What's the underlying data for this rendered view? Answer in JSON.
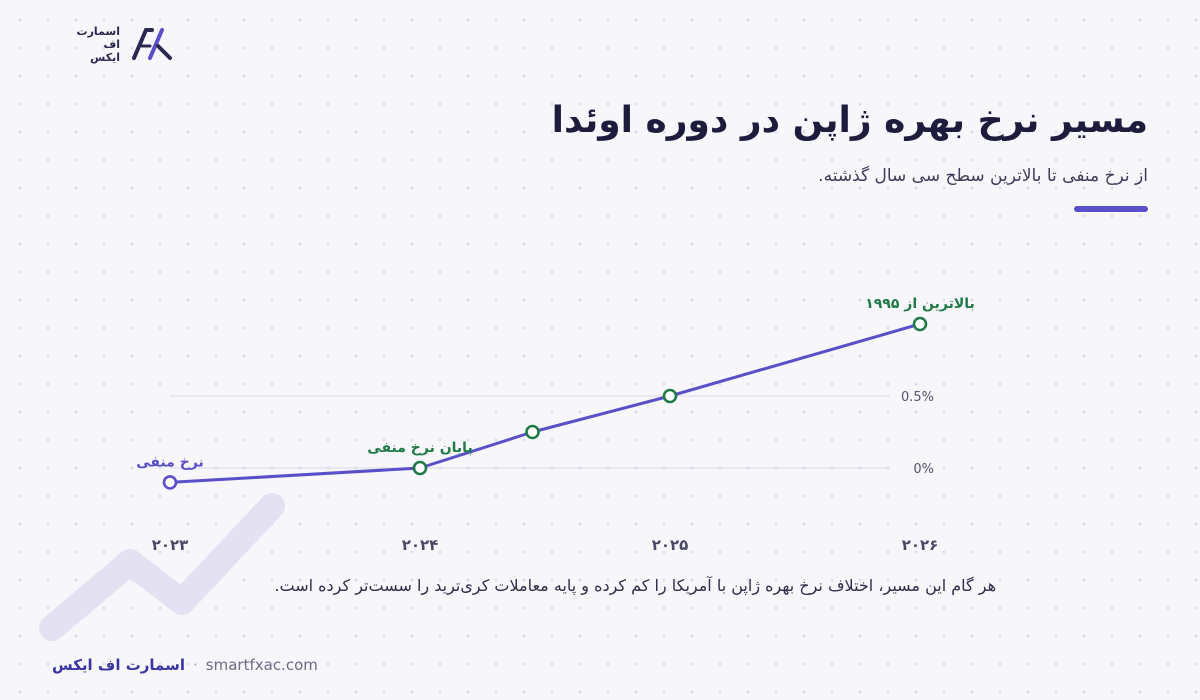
{
  "brand": {
    "logo_lines": [
      "اسمارت",
      "اف",
      "ایکس"
    ],
    "name": "اسمارت اف ایکس",
    "separator": "·",
    "site": "smartfxac.com"
  },
  "header": {
    "title": "مسیر نرخ بهره ژاپن در دوره اوئدا",
    "subtitle": "از نرخ منفی تا بالاترین سطح سی سال گذشته."
  },
  "caption": "هر گام این مسیر، اختلاف نرخ بهره ژاپن با آمریکا را کم کرده و پایه معاملات کری‌ترید را سست‌تر کرده است.",
  "colors": {
    "accent": "#5a4fc8",
    "line": "#5a4fc8",
    "marker_green": "#1f7a46",
    "marker_purple": "#5a4fc8"
  },
  "chart_data": {
    "type": "line",
    "title": "",
    "xlabel": "",
    "ylabel": "",
    "x_ticks": [
      2023,
      2024,
      2025,
      2026
    ],
    "x_tick_labels": [
      "۲۰۲۳",
      "۲۰۲۴",
      "۲۰۲۵",
      "۲۰۲۶"
    ],
    "y_ticks": [
      0,
      0.5
    ],
    "y_tick_labels": [
      "0%",
      "0.5%"
    ],
    "xlim": [
      2023,
      2026
    ],
    "ylim": [
      -0.1,
      0.75
    ],
    "grid": "horizontal",
    "series": [
      {
        "values": [
          {
            "x": 2023.0,
            "y": -0.1
          },
          {
            "x": 2024.0,
            "y": 0.0
          },
          {
            "x": 2024.45,
            "y": 0.25
          },
          {
            "x": 2025.0,
            "y": 0.5
          },
          {
            "x": 2026.0,
            "y": 1.0
          }
        ]
      }
    ],
    "annotations": [
      {
        "point": 0,
        "text": "نرخ منفی",
        "color": "#5a4fc8"
      },
      {
        "point": 1,
        "text": "پایان نرخ منفی",
        "color": "#1f7a46"
      },
      {
        "point": 4,
        "text": "بالاترین از ۱۹۹۵",
        "color": "#1f7a46"
      }
    ]
  }
}
